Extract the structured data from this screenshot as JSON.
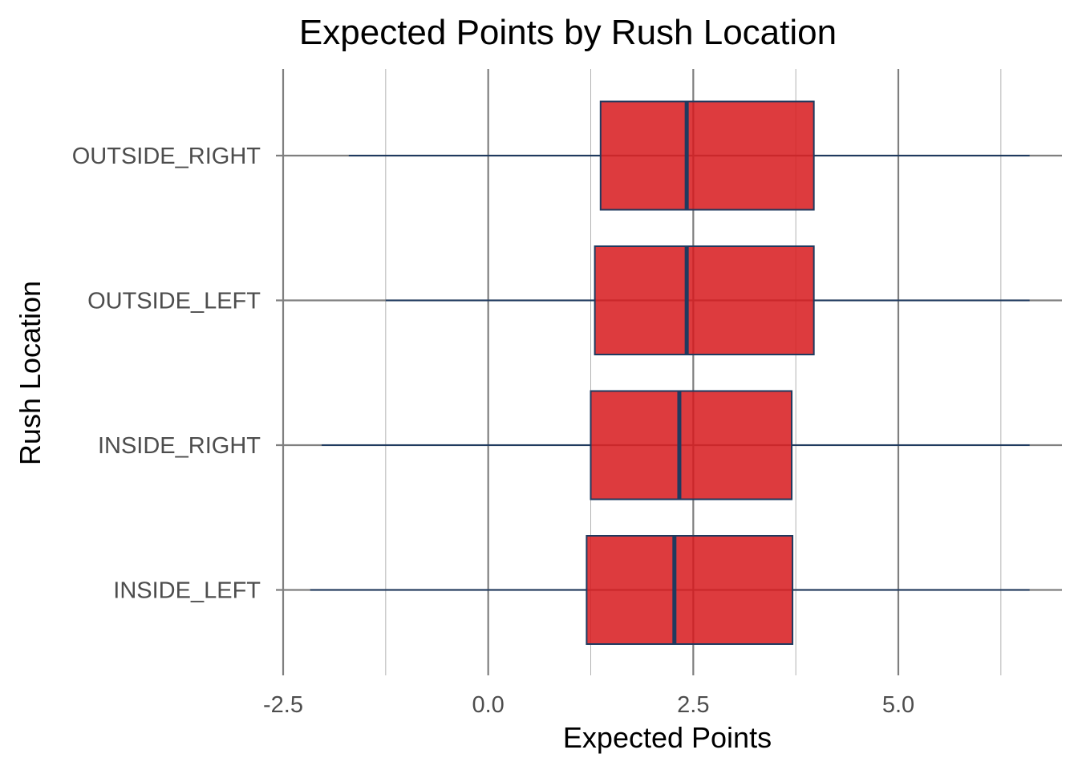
{
  "chart_data": {
    "type": "boxplot",
    "orientation": "horizontal",
    "title": "Expected Points by Rush Location",
    "xlabel": "Expected Points",
    "ylabel": "Rush Location",
    "xlim": [
      -2.5,
      7.0
    ],
    "xticks": [
      -2.5,
      0.0,
      2.5,
      5.0
    ],
    "xtick_labels": [
      "-2.5",
      "0.0",
      "2.5",
      "5.0"
    ],
    "grid": true,
    "colors": {
      "box_fill": "#d7191c",
      "box_stroke": "#1f3a5f",
      "grid_major": "#7f7f7f",
      "grid_minor": "#b3b3b3"
    },
    "categories": [
      "OUTSIDE_RIGHT",
      "OUTSIDE_LEFT",
      "INSIDE_RIGHT",
      "INSIDE_LEFT"
    ],
    "boxes": [
      {
        "category": "OUTSIDE_RIGHT",
        "whisker_low": -1.7,
        "q1": 1.37,
        "median": 2.42,
        "q3": 3.97,
        "whisker_high": 6.6
      },
      {
        "category": "OUTSIDE_LEFT",
        "whisker_low": -1.25,
        "q1": 1.3,
        "median": 2.42,
        "q3": 3.97,
        "whisker_high": 6.6
      },
      {
        "category": "INSIDE_RIGHT",
        "whisker_low": -2.03,
        "q1": 1.25,
        "median": 2.33,
        "q3": 3.7,
        "whisker_high": 6.6
      },
      {
        "category": "INSIDE_LEFT",
        "whisker_low": -2.17,
        "q1": 1.2,
        "median": 2.27,
        "q3": 3.71,
        "whisker_high": 6.6
      }
    ]
  }
}
